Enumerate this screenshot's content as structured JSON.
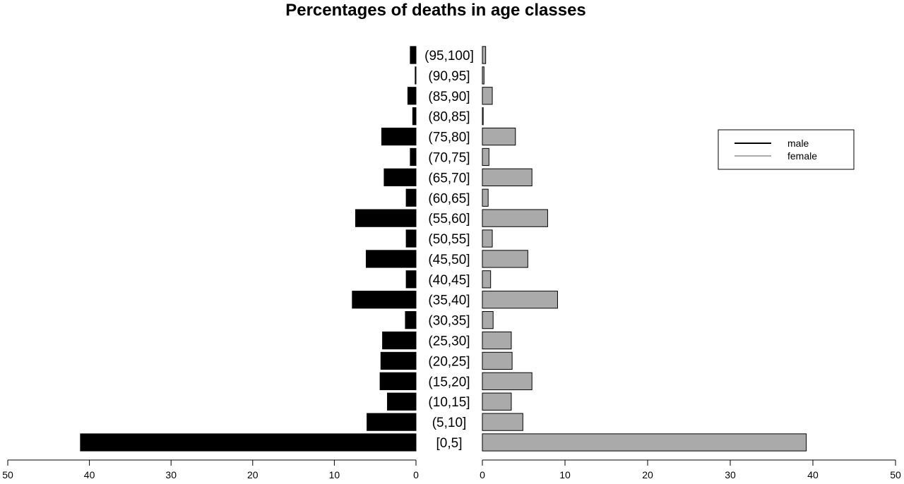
{
  "chart_data": {
    "type": "bar",
    "orientation": "horizontal-pyramid",
    "title": "Percentages of deaths in age classes",
    "categories": [
      "[0,5]",
      "(5,10]",
      "(10,15]",
      "(15,20]",
      "(20,25]",
      "(25,30]",
      "(30,35]",
      "(35,40]",
      "(40,45]",
      "(45,50]",
      "(50,55]",
      "(55,60]",
      "(60,65]",
      "(65,70]",
      "(70,75]",
      "(75,80]",
      "(80,85]",
      "(85,90]",
      "(90,95]",
      "(95,100]"
    ],
    "series": [
      {
        "name": "male",
        "color": "#000000",
        "values": [
          41.1,
          6.0,
          3.5,
          4.4,
          4.3,
          4.1,
          1.3,
          7.8,
          1.2,
          6.1,
          1.2,
          7.4,
          1.2,
          3.9,
          0.7,
          4.2,
          0.4,
          1.0,
          0.1,
          0.7
        ]
      },
      {
        "name": "female",
        "color": "#aaaaaa",
        "values": [
          39.2,
          4.9,
          3.5,
          6.0,
          3.6,
          3.5,
          1.3,
          9.1,
          1.0,
          5.5,
          1.2,
          7.9,
          0.7,
          6.0,
          0.8,
          4.0,
          0.1,
          1.2,
          0.2,
          0.4
        ]
      }
    ],
    "xlim": [
      0,
      50
    ],
    "xticks": [
      0,
      10,
      20,
      30,
      40,
      50
    ],
    "legend": {
      "entries": [
        "male",
        "female"
      ],
      "placement": "right"
    },
    "grid": false
  }
}
